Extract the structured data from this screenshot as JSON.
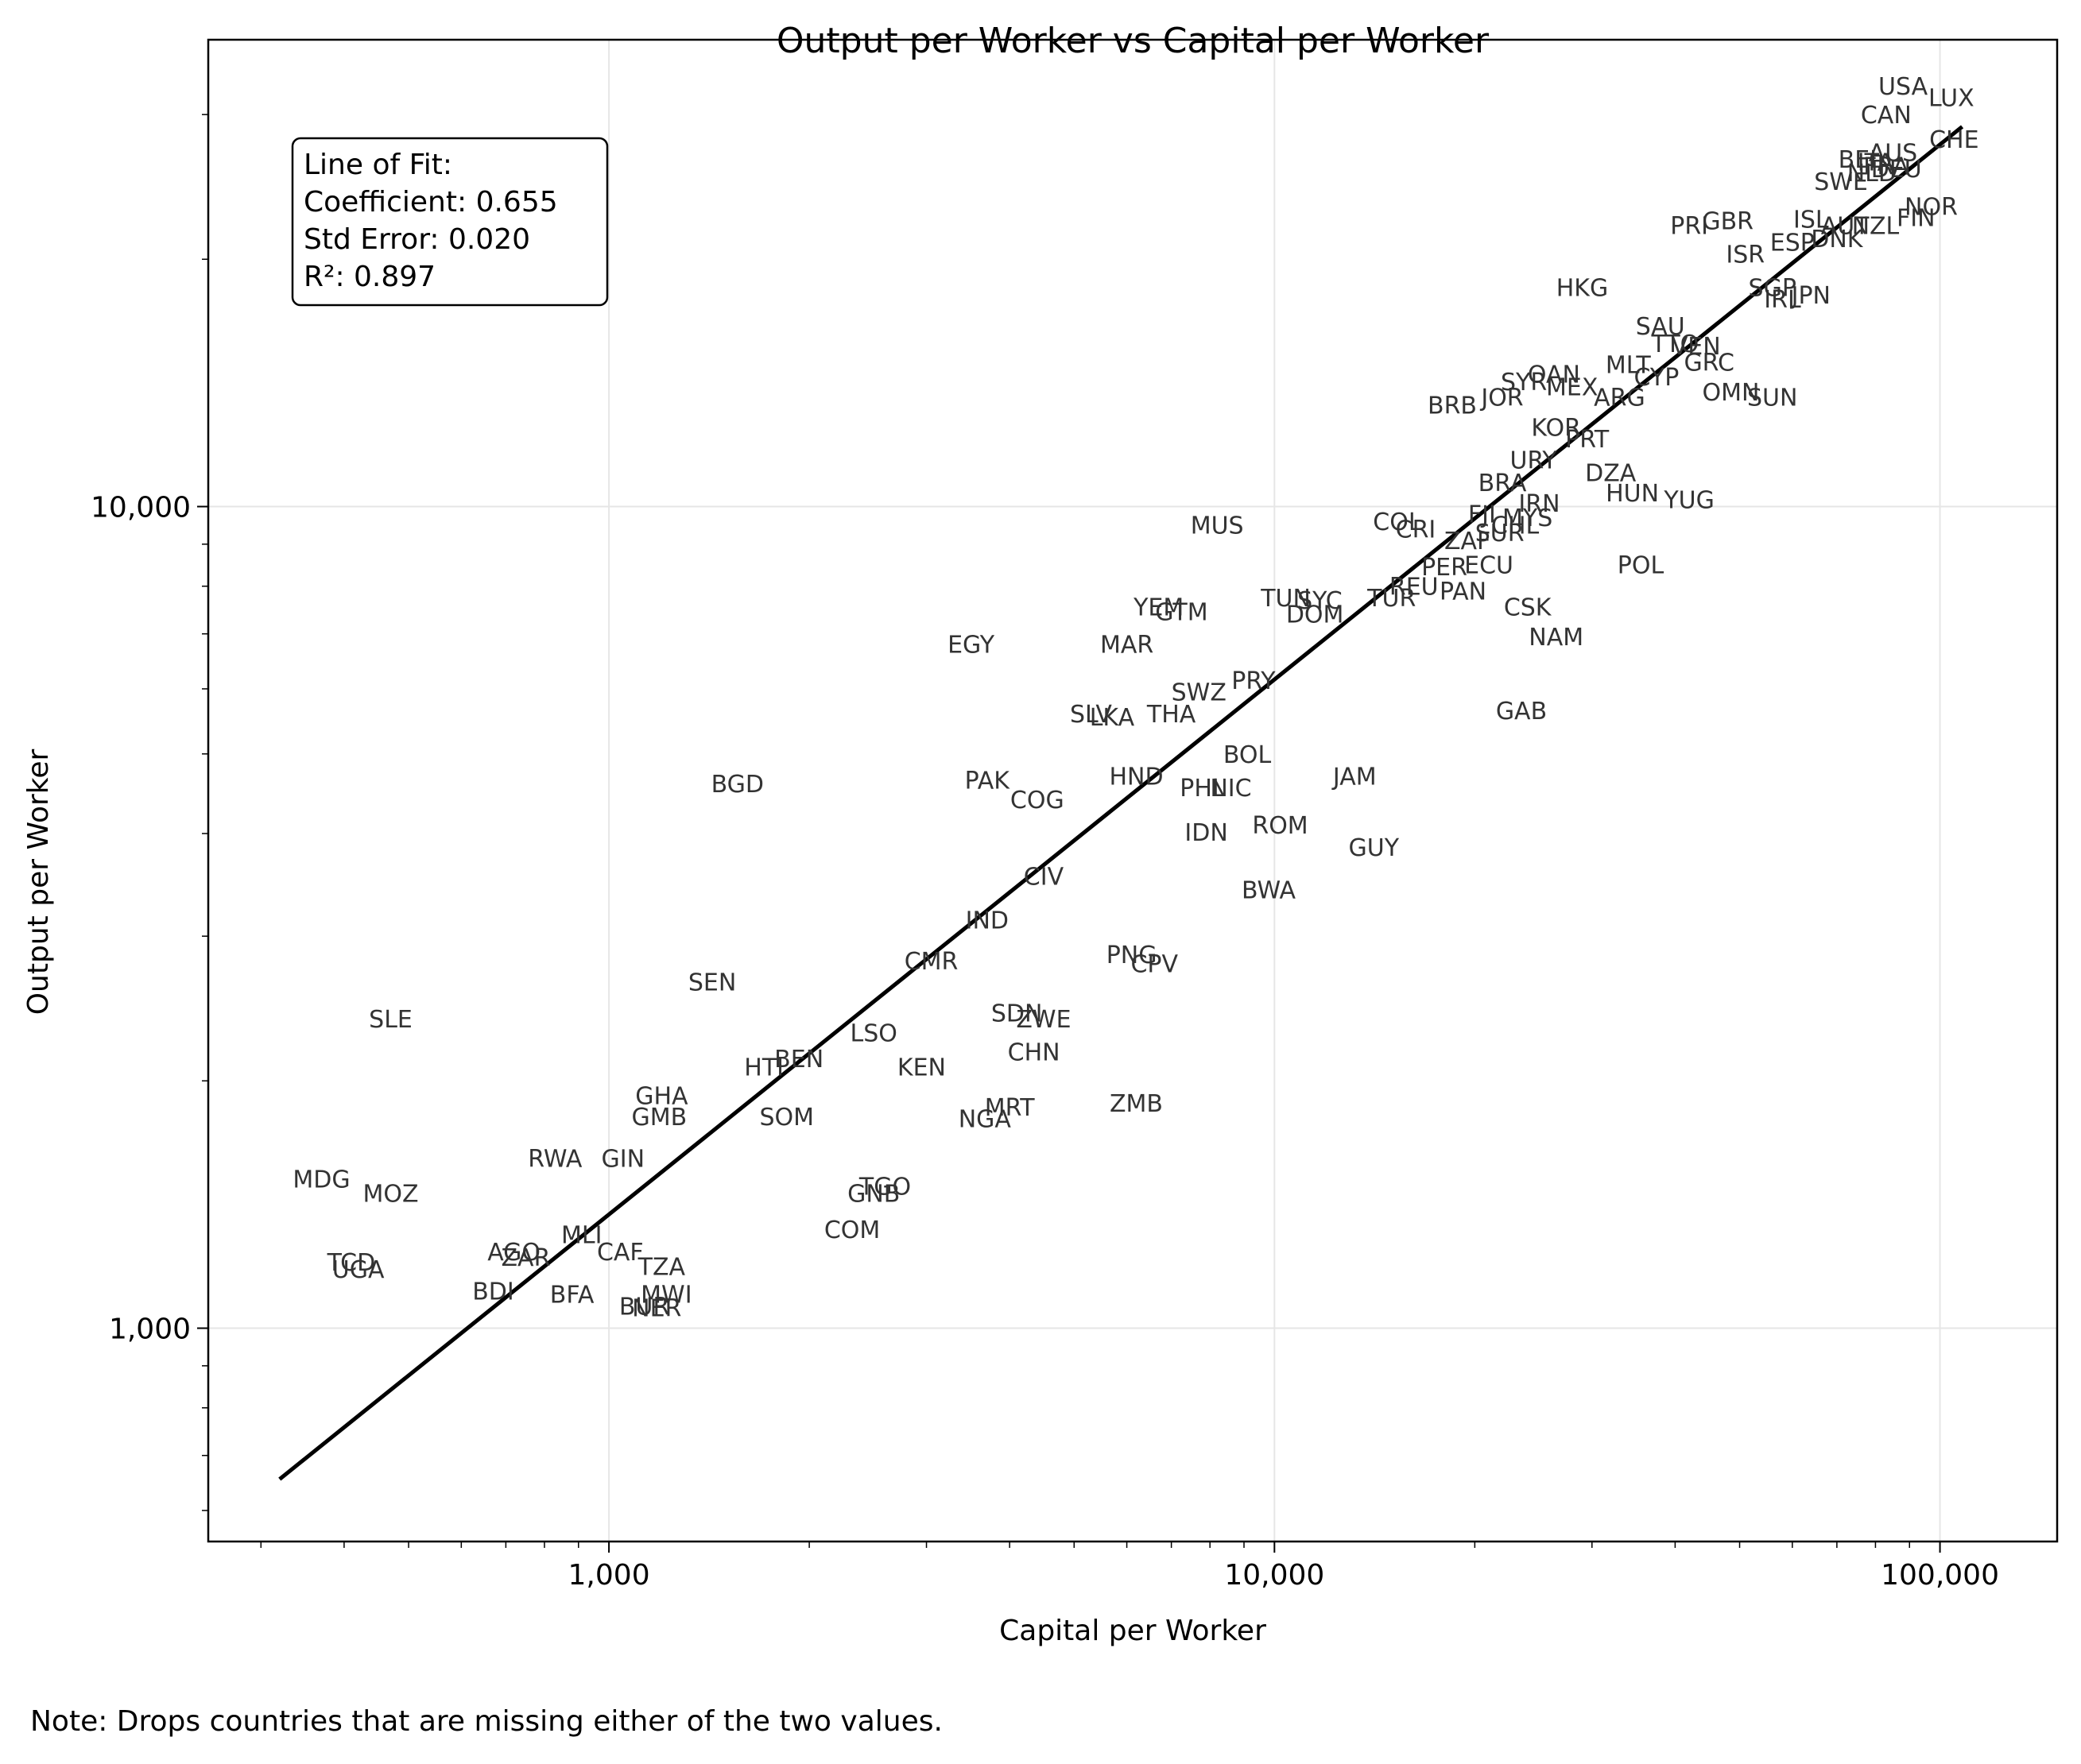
{
  "chart_data": {
    "type": "scatter",
    "title": "Output per Worker vs Capital per Worker",
    "xlabel": "Capital per Worker",
    "ylabel": "Output per Worker",
    "x_scale": "log",
    "y_scale": "log",
    "xlim": [
      250,
      150000
    ],
    "ylim": [
      550,
      37000
    ],
    "x_ticks": [
      1000,
      10000,
      100000
    ],
    "x_tick_labels": [
      "1,000",
      "10,000",
      "100,000"
    ],
    "y_ticks": [
      1000,
      10000
    ],
    "y_tick_labels": [
      "1,000",
      "10,000"
    ],
    "grid": true,
    "fit_line": {
      "x": [
        320,
        108000
      ],
      "y": [
        655,
        29000
      ]
    },
    "annotation": {
      "lines": [
        "Line of Fit:",
        "Coefficient: 0.655",
        "Std Error: 0.020",
        "R²: 0.897"
      ],
      "placement": "top-left"
    },
    "points": [
      {
        "label": "USA",
        "x": 88000,
        "y": 32500
      },
      {
        "label": "LUX",
        "x": 104000,
        "y": 31500
      },
      {
        "label": "CAN",
        "x": 83000,
        "y": 30000
      },
      {
        "label": "CHE",
        "x": 105000,
        "y": 28000
      },
      {
        "label": "AUS",
        "x": 85000,
        "y": 27000
      },
      {
        "label": "BEL",
        "x": 76000,
        "y": 26500
      },
      {
        "label": "ITA",
        "x": 80000,
        "y": 26300
      },
      {
        "label": "FRA",
        "x": 83000,
        "y": 26000
      },
      {
        "label": "NLD",
        "x": 79000,
        "y": 25500
      },
      {
        "label": "DEU",
        "x": 86000,
        "y": 25800
      },
      {
        "label": "SWE",
        "x": 71000,
        "y": 24900
      },
      {
        "label": "NOR",
        "x": 97000,
        "y": 23200
      },
      {
        "label": "FIN",
        "x": 92000,
        "y": 22500
      },
      {
        "label": "ISL",
        "x": 64000,
        "y": 22400
      },
      {
        "label": "AUT",
        "x": 72000,
        "y": 22000
      },
      {
        "label": "NZL",
        "x": 80000,
        "y": 22000
      },
      {
        "label": "DNK",
        "x": 70000,
        "y": 21200
      },
      {
        "label": "PRI",
        "x": 42000,
        "y": 22000
      },
      {
        "label": "GBR",
        "x": 48000,
        "y": 22300
      },
      {
        "label": "ESP",
        "x": 60000,
        "y": 21000
      },
      {
        "label": "ISR",
        "x": 51000,
        "y": 20300
      },
      {
        "label": "HKG",
        "x": 29000,
        "y": 18500
      },
      {
        "label": "SGP",
        "x": 56000,
        "y": 18500
      },
      {
        "label": "IRL",
        "x": 58000,
        "y": 17900
      },
      {
        "label": "JPN",
        "x": 64000,
        "y": 18100
      },
      {
        "label": "SAU",
        "x": 38000,
        "y": 16600
      },
      {
        "label": "TTO",
        "x": 40000,
        "y": 15800
      },
      {
        "label": "VEN",
        "x": 43000,
        "y": 15700
      },
      {
        "label": "GRC",
        "x": 45000,
        "y": 15000
      },
      {
        "label": "MLT",
        "x": 34000,
        "y": 14900
      },
      {
        "label": "CYP",
        "x": 37500,
        "y": 14400
      },
      {
        "label": "SYR",
        "x": 23700,
        "y": 14200
      },
      {
        "label": "OAN",
        "x": 26300,
        "y": 14500
      },
      {
        "label": "MEX",
        "x": 28000,
        "y": 14000
      },
      {
        "label": "ARG",
        "x": 33000,
        "y": 13600
      },
      {
        "label": "OMN",
        "x": 48500,
        "y": 13800
      },
      {
        "label": "SUN",
        "x": 56000,
        "y": 13600
      },
      {
        "label": "JOR",
        "x": 22000,
        "y": 13600
      },
      {
        "label": "BRB",
        "x": 18500,
        "y": 13300
      },
      {
        "label": "KOR",
        "x": 26500,
        "y": 12500
      },
      {
        "label": "PRT",
        "x": 29500,
        "y": 12100
      },
      {
        "label": "URY",
        "x": 24500,
        "y": 11400
      },
      {
        "label": "DZA",
        "x": 32000,
        "y": 11000
      },
      {
        "label": "BRA",
        "x": 22000,
        "y": 10700
      },
      {
        "label": "HUN",
        "x": 34500,
        "y": 10400
      },
      {
        "label": "YUG",
        "x": 42000,
        "y": 10200
      },
      {
        "label": "IRN",
        "x": 25000,
        "y": 10100
      },
      {
        "label": "MUS",
        "x": 8200,
        "y": 9500
      },
      {
        "label": "COL",
        "x": 15300,
        "y": 9600
      },
      {
        "label": "CRI",
        "x": 16300,
        "y": 9400
      },
      {
        "label": "FJI",
        "x": 20500,
        "y": 9800
      },
      {
        "label": "MYS",
        "x": 24000,
        "y": 9700
      },
      {
        "label": "CHL",
        "x": 23000,
        "y": 9500
      },
      {
        "label": "ZAF",
        "x": 19500,
        "y": 9100
      },
      {
        "label": "SUR",
        "x": 21800,
        "y": 9300
      },
      {
        "label": "POL",
        "x": 35500,
        "y": 8500
      },
      {
        "label": "PER",
        "x": 18000,
        "y": 8450
      },
      {
        "label": "ECU",
        "x": 21000,
        "y": 8500
      },
      {
        "label": "REU",
        "x": 16200,
        "y": 8000
      },
      {
        "label": "PAN",
        "x": 19200,
        "y": 7900
      },
      {
        "label": "TUN",
        "x": 10400,
        "y": 7750
      },
      {
        "label": "SYC",
        "x": 11700,
        "y": 7700
      },
      {
        "label": "DOM",
        "x": 11500,
        "y": 7400
      },
      {
        "label": "TUR",
        "x": 15000,
        "y": 7750
      },
      {
        "label": "CSK",
        "x": 24000,
        "y": 7550
      },
      {
        "label": "NAM",
        "x": 26500,
        "y": 6950
      },
      {
        "label": "YEM",
        "x": 6700,
        "y": 7550
      },
      {
        "label": "GTM",
        "x": 7250,
        "y": 7450
      },
      {
        "label": "EGY",
        "x": 3500,
        "y": 6800
      },
      {
        "label": "MAR",
        "x": 6000,
        "y": 6800
      },
      {
        "label": "SWZ",
        "x": 7700,
        "y": 5950
      },
      {
        "label": "PRY",
        "x": 9300,
        "y": 6150
      },
      {
        "label": "SLV",
        "x": 5300,
        "y": 5600
      },
      {
        "label": "LKA",
        "x": 5700,
        "y": 5550
      },
      {
        "label": "THA",
        "x": 7000,
        "y": 5600
      },
      {
        "label": "GAB",
        "x": 23500,
        "y": 5650
      },
      {
        "label": "BOL",
        "x": 9100,
        "y": 5000
      },
      {
        "label": "JAM",
        "x": 13200,
        "y": 4700
      },
      {
        "label": "BGD",
        "x": 1560,
        "y": 4600
      },
      {
        "label": "PAK",
        "x": 3700,
        "y": 4650
      },
      {
        "label": "HND",
        "x": 6200,
        "y": 4700
      },
      {
        "label": "PHL",
        "x": 7800,
        "y": 4550
      },
      {
        "label": "NIC",
        "x": 8600,
        "y": 4550
      },
      {
        "label": "COG",
        "x": 4400,
        "y": 4400
      },
      {
        "label": "IDN",
        "x": 7900,
        "y": 4020
      },
      {
        "label": "ROM",
        "x": 10200,
        "y": 4100
      },
      {
        "label": "GUY",
        "x": 14100,
        "y": 3850
      },
      {
        "label": "CIV",
        "x": 4500,
        "y": 3550
      },
      {
        "label": "BWA",
        "x": 9800,
        "y": 3420
      },
      {
        "label": "IND",
        "x": 3700,
        "y": 3140
      },
      {
        "label": "CMR",
        "x": 3050,
        "y": 2800
      },
      {
        "label": "PNG",
        "x": 6100,
        "y": 2850
      },
      {
        "label": "CPV",
        "x": 6600,
        "y": 2780
      },
      {
        "label": "SEN",
        "x": 1430,
        "y": 2640
      },
      {
        "label": "SLE",
        "x": 470,
        "y": 2380
      },
      {
        "label": "SDN",
        "x": 4100,
        "y": 2420
      },
      {
        "label": "ZWE",
        "x": 4500,
        "y": 2380
      },
      {
        "label": "LSO",
        "x": 2500,
        "y": 2290
      },
      {
        "label": "CHN",
        "x": 4350,
        "y": 2170
      },
      {
        "label": "BEN",
        "x": 1930,
        "y": 2130
      },
      {
        "label": "HTI",
        "x": 1710,
        "y": 2080
      },
      {
        "label": "KEN",
        "x": 2950,
        "y": 2080
      },
      {
        "label": "GHA",
        "x": 1200,
        "y": 1920
      },
      {
        "label": "GMB",
        "x": 1190,
        "y": 1810
      },
      {
        "label": "SOM",
        "x": 1850,
        "y": 1810
      },
      {
        "label": "NGA",
        "x": 3670,
        "y": 1800
      },
      {
        "label": "MRT",
        "x": 4000,
        "y": 1860
      },
      {
        "label": "ZMB",
        "x": 6200,
        "y": 1880
      },
      {
        "label": "RWA",
        "x": 830,
        "y": 1610
      },
      {
        "label": "GIN",
        "x": 1050,
        "y": 1610
      },
      {
        "label": "MDG",
        "x": 370,
        "y": 1520
      },
      {
        "label": "MOZ",
        "x": 470,
        "y": 1460
      },
      {
        "label": "TGO",
        "x": 2600,
        "y": 1490
      },
      {
        "label": "GNB",
        "x": 2500,
        "y": 1460
      },
      {
        "label": "COM",
        "x": 2320,
        "y": 1320
      },
      {
        "label": "MLI",
        "x": 910,
        "y": 1300
      },
      {
        "label": "AGO",
        "x": 720,
        "y": 1240
      },
      {
        "label": "ZAR",
        "x": 750,
        "y": 1220
      },
      {
        "label": "CAF",
        "x": 1040,
        "y": 1240
      },
      {
        "label": "TCD",
        "x": 410,
        "y": 1205
      },
      {
        "label": "UGA",
        "x": 420,
        "y": 1180
      },
      {
        "label": "TZA",
        "x": 1200,
        "y": 1190
      },
      {
        "label": "BDI",
        "x": 670,
        "y": 1110
      },
      {
        "label": "BFA",
        "x": 880,
        "y": 1100
      },
      {
        "label": "MWI",
        "x": 1220,
        "y": 1100
      },
      {
        "label": "BUR",
        "x": 1130,
        "y": 1065
      },
      {
        "label": "NER",
        "x": 1180,
        "y": 1060
      }
    ]
  },
  "note": "Note: Drops countries that are missing either of the two values."
}
